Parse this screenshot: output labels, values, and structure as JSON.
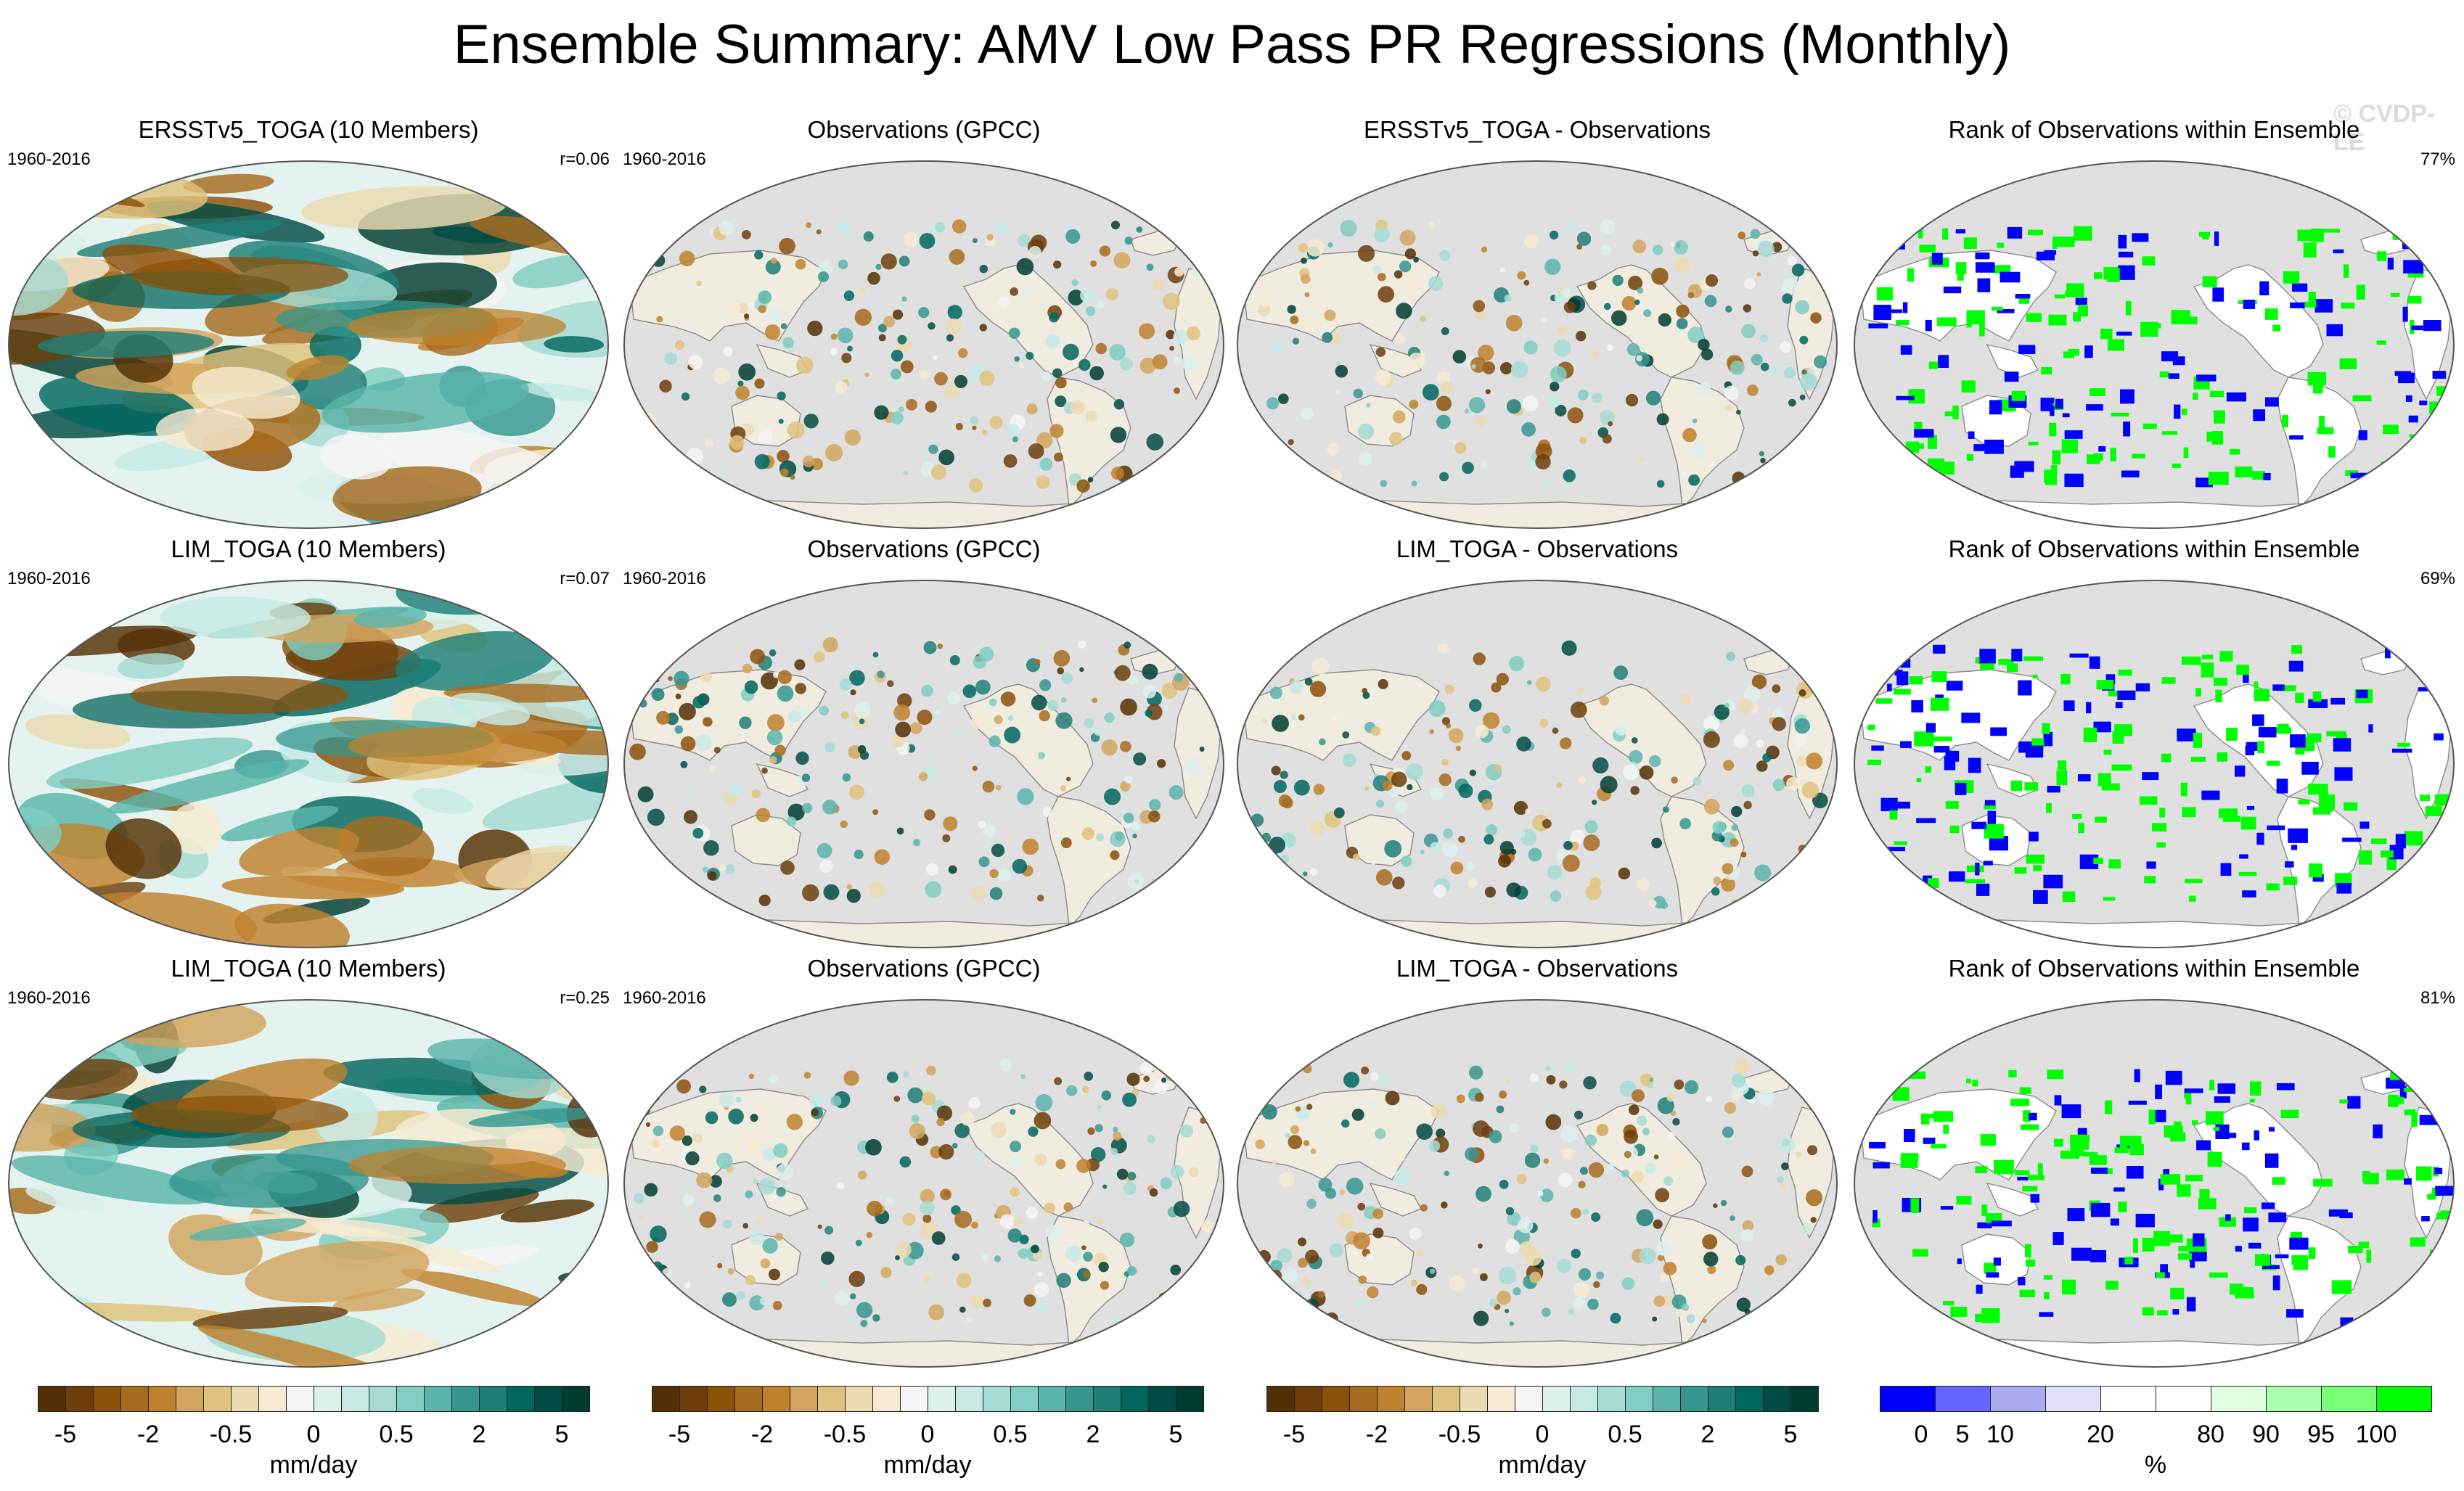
{
  "title": "Ensemble Summary: AMV Low Pass PR Regressions (Monthly)",
  "watermark": "© CVDP-LE",
  "rows": [
    {
      "panels": [
        {
          "title": "ERSSTv5_TOGA (10 Members)",
          "left": "1960-2016",
          "right": "r=0.06",
          "kind": "model"
        },
        {
          "title": "Observations (GPCC)",
          "left": "1960-2016",
          "right": "",
          "kind": "obs"
        },
        {
          "title": "ERSSTv5_TOGA - Observations",
          "left": "",
          "right": "",
          "kind": "diff"
        },
        {
          "title": "Rank of Observations within Ensemble",
          "left": "",
          "right": "77%",
          "kind": "rank"
        }
      ]
    },
    {
      "panels": [
        {
          "title": "LIM_TOGA (10 Members)",
          "left": "1960-2016",
          "right": "r=0.07",
          "kind": "model"
        },
        {
          "title": "Observations (GPCC)",
          "left": "1960-2016",
          "right": "",
          "kind": "obs"
        },
        {
          "title": "LIM_TOGA - Observations",
          "left": "",
          "right": "",
          "kind": "diff"
        },
        {
          "title": "Rank of Observations within Ensemble",
          "left": "",
          "right": "69%",
          "kind": "rank"
        }
      ]
    },
    {
      "panels": [
        {
          "title": "LIM_TOGA (10 Members)",
          "left": "1960-2016",
          "right": "r=0.25",
          "kind": "model"
        },
        {
          "title": "Observations (GPCC)",
          "left": "1960-2016",
          "right": "",
          "kind": "obs"
        },
        {
          "title": "LIM_TOGA - Observations",
          "left": "",
          "right": "",
          "kind": "diff"
        },
        {
          "title": "Rank of Observations within Ensemble",
          "left": "",
          "right": "81%",
          "kind": "rank"
        }
      ]
    }
  ],
  "colorbars": {
    "precip": {
      "colors": [
        "#543005",
        "#6d3e0c",
        "#8c510a",
        "#a76b1f",
        "#bf812d",
        "#d2a45d",
        "#dfc27d",
        "#ecdbb0",
        "#f6ebd2",
        "#f5f5f5",
        "#dcf0ec",
        "#c7eae5",
        "#a5dbd3",
        "#80cdc1",
        "#5ab4ab",
        "#35978f",
        "#1f7f77",
        "#01665e",
        "#014c44",
        "#003c30"
      ],
      "ticks": [
        "-5",
        "-2",
        "-0.5",
        "0",
        "0.5",
        "2",
        "5"
      ],
      "unit": "mm/day"
    },
    "rank": {
      "colors": [
        "#0000ff",
        "#6666ff",
        "#aaaaf0",
        "#e0e0fa",
        "#ffffff",
        "#ffffff",
        "#e0ffe0",
        "#aaffaa",
        "#77ff77",
        "#00ff00"
      ],
      "ticks": [
        "0",
        "5",
        "10",
        "20",
        "80",
        "90",
        "95",
        "100"
      ],
      "unit": "%"
    }
  }
}
